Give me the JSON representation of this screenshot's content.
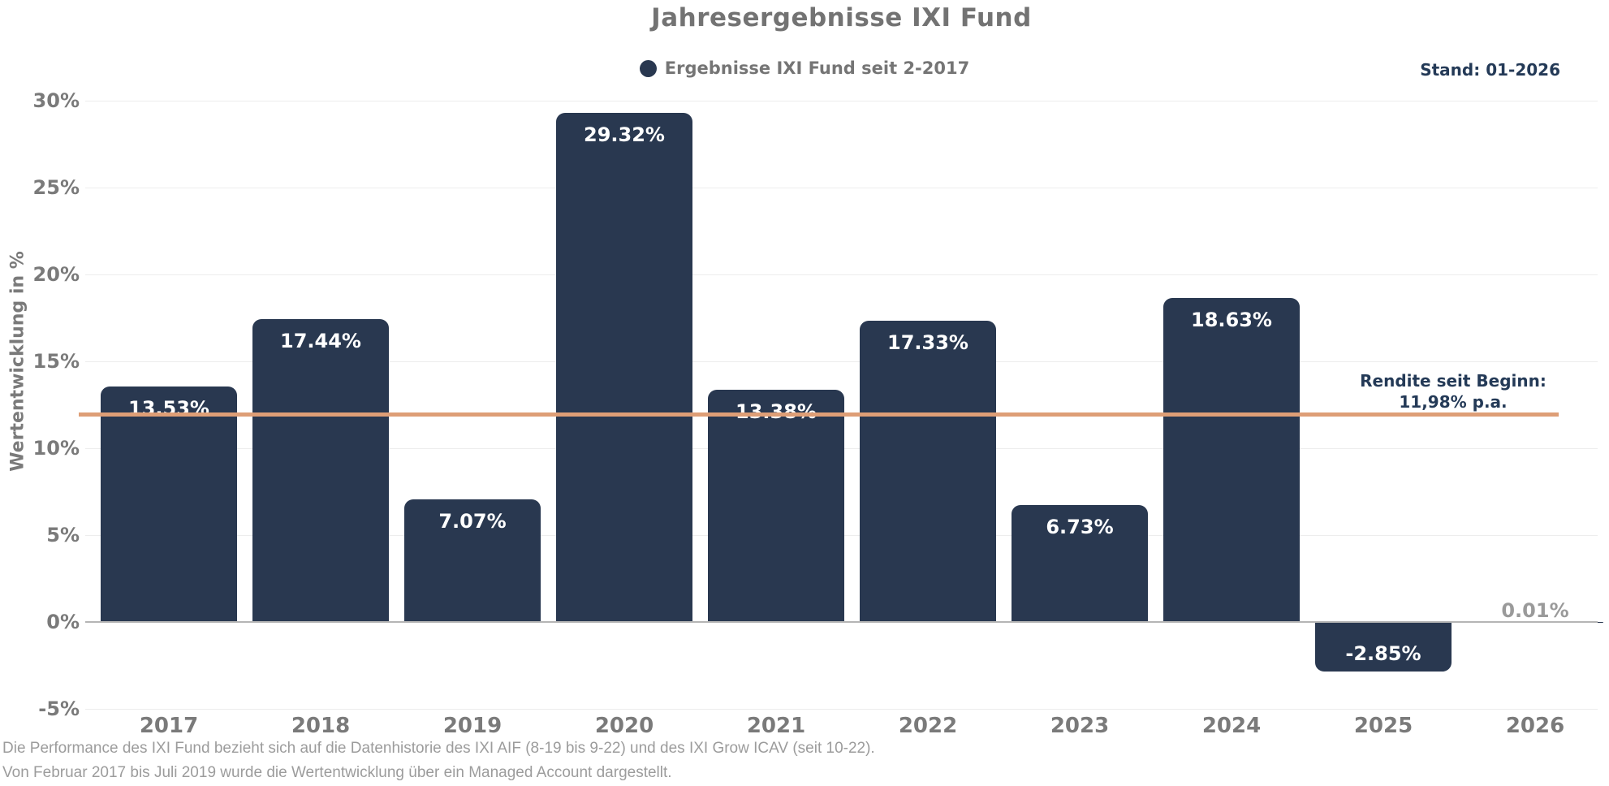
{
  "title": "Jahresergebnisse IXI Fund",
  "legend": {
    "label": "Ergebnisse IXI Fund seit 2-2017",
    "marker_color": "#293850"
  },
  "stand_label": "Stand: 01-2026",
  "y_axis_title": "Wertentwicklung in %",
  "reference_line": {
    "label_line1": "Rendite seit Beginn:",
    "label_line2": "11,98% p.a.",
    "value": 11.98,
    "color": "#de9e76"
  },
  "footnotes": [
    "Die Performance des IXI Fund bezieht sich auf die Datenhistorie des IXI AIF (8-19 bis 9-22) und des IXI Grow ICAV (seit 10-22).",
    "Von Februar 2017 bis Juli 2019 wurde die Wertentwicklung über ein Managed Account dargestellt."
  ],
  "colors": {
    "bar": "#293850",
    "reference_line": "#de9e76",
    "gridline": "#ededed",
    "zero_axis": "#b5b5b5",
    "axis_text": "#7a7a7a",
    "title_text": "#737373",
    "legend_text": "#757575",
    "navy_text": "#243a57",
    "footnote_text": "#9c9c9c",
    "bar_label_inside": "#ffffff",
    "bar_label_outside": "#9a9a9a",
    "background": "#ffffff"
  },
  "chart_data": {
    "type": "bar",
    "title": "Jahresergebnisse IXI Fund",
    "legend_entries": [
      "Ergebnisse IXI Fund seit 2-2017"
    ],
    "legend_position": "top-center",
    "xlabel": "",
    "ylabel": "Wertentwicklung in %",
    "categories": [
      "2017",
      "2018",
      "2019",
      "2020",
      "2021",
      "2022",
      "2023",
      "2024",
      "2025",
      "2026"
    ],
    "values": [
      13.53,
      17.44,
      7.07,
      29.32,
      13.38,
      17.33,
      6.73,
      18.63,
      -2.85,
      0.01
    ],
    "bar_labels": [
      "13.53%",
      "17.44%",
      "7.07%",
      "29.32%",
      "13.38%",
      "17.33%",
      "6.73%",
      "18.63%",
      "-2.85%",
      "0.01%"
    ],
    "ylim": [
      -5,
      30
    ],
    "yticks": [
      30,
      25,
      20,
      15,
      10,
      5,
      0,
      -5
    ],
    "ytick_labels": [
      "30%",
      "25%",
      "20%",
      "15%",
      "10%",
      "5%",
      "0%",
      "-5%"
    ],
    "grid": true,
    "reference_line_value": 11.98,
    "annotations": [
      "Rendite seit Beginn:",
      "11,98% p.a.",
      "Stand: 01-2026"
    ]
  }
}
